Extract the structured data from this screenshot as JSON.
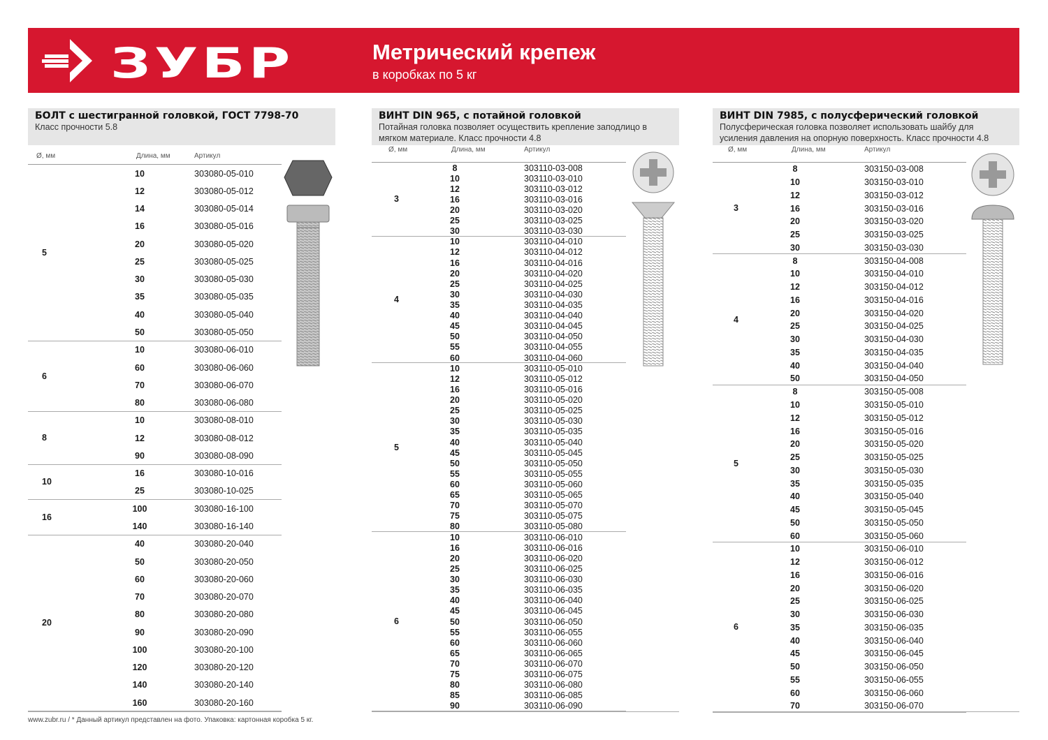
{
  "header": {
    "logo_text": "ЗУБР",
    "title": "Метрический крепеж",
    "subtitle": "в коробках по 5 кг",
    "brand_color": "#d6172f"
  },
  "columns": [
    {
      "title": "БОЛТ с шестигранной головкой, ГОСТ 7798-70",
      "description": "Класс прочности 5.8",
      "headers": [
        "Ø, мм",
        "Длина, мм",
        "Артикул"
      ],
      "groups": [
        {
          "d": "5",
          "rows": [
            [
              "10",
              "303080-05-010"
            ],
            [
              "12",
              "303080-05-012"
            ],
            [
              "14",
              "303080-05-014"
            ],
            [
              "16",
              "303080-05-016"
            ],
            [
              "20",
              "303080-05-020"
            ],
            [
              "25",
              "303080-05-025"
            ],
            [
              "30",
              "303080-05-030"
            ],
            [
              "35",
              "303080-05-035"
            ],
            [
              "40",
              "303080-05-040"
            ],
            [
              "50",
              "303080-05-050"
            ]
          ]
        },
        {
          "d": "6",
          "rows": [
            [
              "10",
              "303080-06-010"
            ],
            [
              "60",
              "303080-06-060"
            ],
            [
              "70",
              "303080-06-070"
            ],
            [
              "80",
              "303080-06-080"
            ]
          ]
        },
        {
          "d": "8",
          "rows": [
            [
              "10",
              "303080-08-010"
            ],
            [
              "12",
              "303080-08-012"
            ],
            [
              "90",
              "303080-08-090"
            ]
          ]
        },
        {
          "d": "10",
          "rows": [
            [
              "16",
              "303080-10-016"
            ],
            [
              "25",
              "303080-10-025"
            ]
          ]
        },
        {
          "d": "16",
          "rows": [
            [
              "100",
              "303080-16-100"
            ],
            [
              "140",
              "303080-16-140"
            ]
          ]
        },
        {
          "d": "20",
          "rows": [
            [
              "40",
              "303080-20-040"
            ],
            [
              "50",
              "303080-20-050"
            ],
            [
              "60",
              "303080-20-060"
            ],
            [
              "70",
              "303080-20-070"
            ],
            [
              "80",
              "303080-20-080"
            ],
            [
              "90",
              "303080-20-090"
            ],
            [
              "100",
              "303080-20-100"
            ],
            [
              "120",
              "303080-20-120"
            ],
            [
              "140",
              "303080-20-140"
            ],
            [
              "160",
              "303080-20-160"
            ]
          ]
        }
      ]
    },
    {
      "title": "ВИНТ DIN 965, с потайной головкой",
      "description": "Потайная головка позволяет осуществить крепление заподлицо в мягком материале. Класс прочности 4.8",
      "headers": [
        "Ø, мм",
        "Длина, мм",
        "Артикул"
      ],
      "groups": [
        {
          "d": "3",
          "rows": [
            [
              "8",
              "303110-03-008"
            ],
            [
              "10",
              "303110-03-010"
            ],
            [
              "12",
              "303110-03-012"
            ],
            [
              "16",
              "303110-03-016"
            ],
            [
              "20",
              "303110-03-020"
            ],
            [
              "25",
              "303110-03-025"
            ],
            [
              "30",
              "303110-03-030"
            ]
          ]
        },
        {
          "d": "4",
          "rows": [
            [
              "10",
              "303110-04-010"
            ],
            [
              "12",
              "303110-04-012"
            ],
            [
              "16",
              "303110-04-016"
            ],
            [
              "20",
              "303110-04-020"
            ],
            [
              "25",
              "303110-04-025"
            ],
            [
              "30",
              "303110-04-030"
            ],
            [
              "35",
              "303110-04-035"
            ],
            [
              "40",
              "303110-04-040"
            ],
            [
              "45",
              "303110-04-045"
            ],
            [
              "50",
              "303110-04-050"
            ],
            [
              "55",
              "303110-04-055"
            ],
            [
              "60",
              "303110-04-060"
            ]
          ]
        },
        {
          "d": "5",
          "rows": [
            [
              "10",
              "303110-05-010"
            ],
            [
              "12",
              "303110-05-012"
            ],
            [
              "16",
              "303110-05-016"
            ],
            [
              "20",
              "303110-05-020"
            ],
            [
              "25",
              "303110-05-025"
            ],
            [
              "30",
              "303110-05-030"
            ],
            [
              "35",
              "303110-05-035"
            ],
            [
              "40",
              "303110-05-040"
            ],
            [
              "45",
              "303110-05-045"
            ],
            [
              "50",
              "303110-05-050"
            ],
            [
              "55",
              "303110-05-055"
            ],
            [
              "60",
              "303110-05-060"
            ],
            [
              "65",
              "303110-05-065"
            ],
            [
              "70",
              "303110-05-070"
            ],
            [
              "75",
              "303110-05-075"
            ],
            [
              "80",
              "303110-05-080"
            ]
          ]
        },
        {
          "d": "6",
          "rows": [
            [
              "10",
              "303110-06-010"
            ],
            [
              "16",
              "303110-06-016"
            ],
            [
              "20",
              "303110-06-020"
            ],
            [
              "25",
              "303110-06-025"
            ],
            [
              "30",
              "303110-06-030"
            ],
            [
              "35",
              "303110-06-035"
            ],
            [
              "40",
              "303110-06-040"
            ],
            [
              "45",
              "303110-06-045"
            ],
            [
              "50",
              "303110-06-050"
            ],
            [
              "55",
              "303110-06-055"
            ],
            [
              "60",
              "303110-06-060"
            ],
            [
              "65",
              "303110-06-065"
            ],
            [
              "70",
              "303110-06-070"
            ],
            [
              "75",
              "303110-06-075"
            ],
            [
              "80",
              "303110-06-080"
            ],
            [
              "85",
              "303110-06-085"
            ],
            [
              "90",
              "303110-06-090"
            ]
          ]
        }
      ]
    },
    {
      "title": "ВИНТ DIN 7985, с полусферический головкой",
      "description": "Полусферическая головка позволяет использовать шайбу для усиления давления на опорную поверхность. Класс прочности 4.8",
      "headers": [
        "Ø, мм",
        "Длина, мм",
        "Артикул"
      ],
      "groups": [
        {
          "d": "3",
          "rows": [
            [
              "8",
              "303150-03-008"
            ],
            [
              "10",
              "303150-03-010"
            ],
            [
              "12",
              "303150-03-012"
            ],
            [
              "16",
              "303150-03-016"
            ],
            [
              "20",
              "303150-03-020"
            ],
            [
              "25",
              "303150-03-025"
            ],
            [
              "30",
              "303150-03-030"
            ]
          ]
        },
        {
          "d": "4",
          "rows": [
            [
              "8",
              "303150-04-008"
            ],
            [
              "10",
              "303150-04-010"
            ],
            [
              "12",
              "303150-04-012"
            ],
            [
              "16",
              "303150-04-016"
            ],
            [
              "20",
              "303150-04-020"
            ],
            [
              "25",
              "303150-04-025"
            ],
            [
              "30",
              "303150-04-030"
            ],
            [
              "35",
              "303150-04-035"
            ],
            [
              "40",
              "303150-04-040"
            ],
            [
              "50",
              "303150-04-050"
            ]
          ]
        },
        {
          "d": "5",
          "rows": [
            [
              "8",
              "303150-05-008"
            ],
            [
              "10",
              "303150-05-010"
            ],
            [
              "12",
              "303150-05-012"
            ],
            [
              "16",
              "303150-05-016"
            ],
            [
              "20",
              "303150-05-020"
            ],
            [
              "25",
              "303150-05-025"
            ],
            [
              "30",
              "303150-05-030"
            ],
            [
              "35",
              "303150-05-035"
            ],
            [
              "40",
              "303150-05-040"
            ],
            [
              "45",
              "303150-05-045"
            ],
            [
              "50",
              "303150-05-050"
            ],
            [
              "60",
              "303150-05-060"
            ]
          ]
        },
        {
          "d": "6",
          "rows": [
            [
              "10",
              "303150-06-010"
            ],
            [
              "12",
              "303150-06-012"
            ],
            [
              "16",
              "303150-06-016"
            ],
            [
              "20",
              "303150-06-020"
            ],
            [
              "25",
              "303150-06-025"
            ],
            [
              "30",
              "303150-06-030"
            ],
            [
              "35",
              "303150-06-035"
            ],
            [
              "40",
              "303150-06-040"
            ],
            [
              "45",
              "303150-06-045"
            ],
            [
              "50",
              "303150-06-050"
            ],
            [
              "55",
              "303150-06-055"
            ],
            [
              "60",
              "303150-06-060"
            ],
            [
              "70",
              "303150-06-070"
            ]
          ]
        }
      ]
    }
  ],
  "footer": {
    "text": "www.zubr.ru  /  * Данный артикул представлен на фото. Упаковка: картонная коробка 5 кг."
  }
}
